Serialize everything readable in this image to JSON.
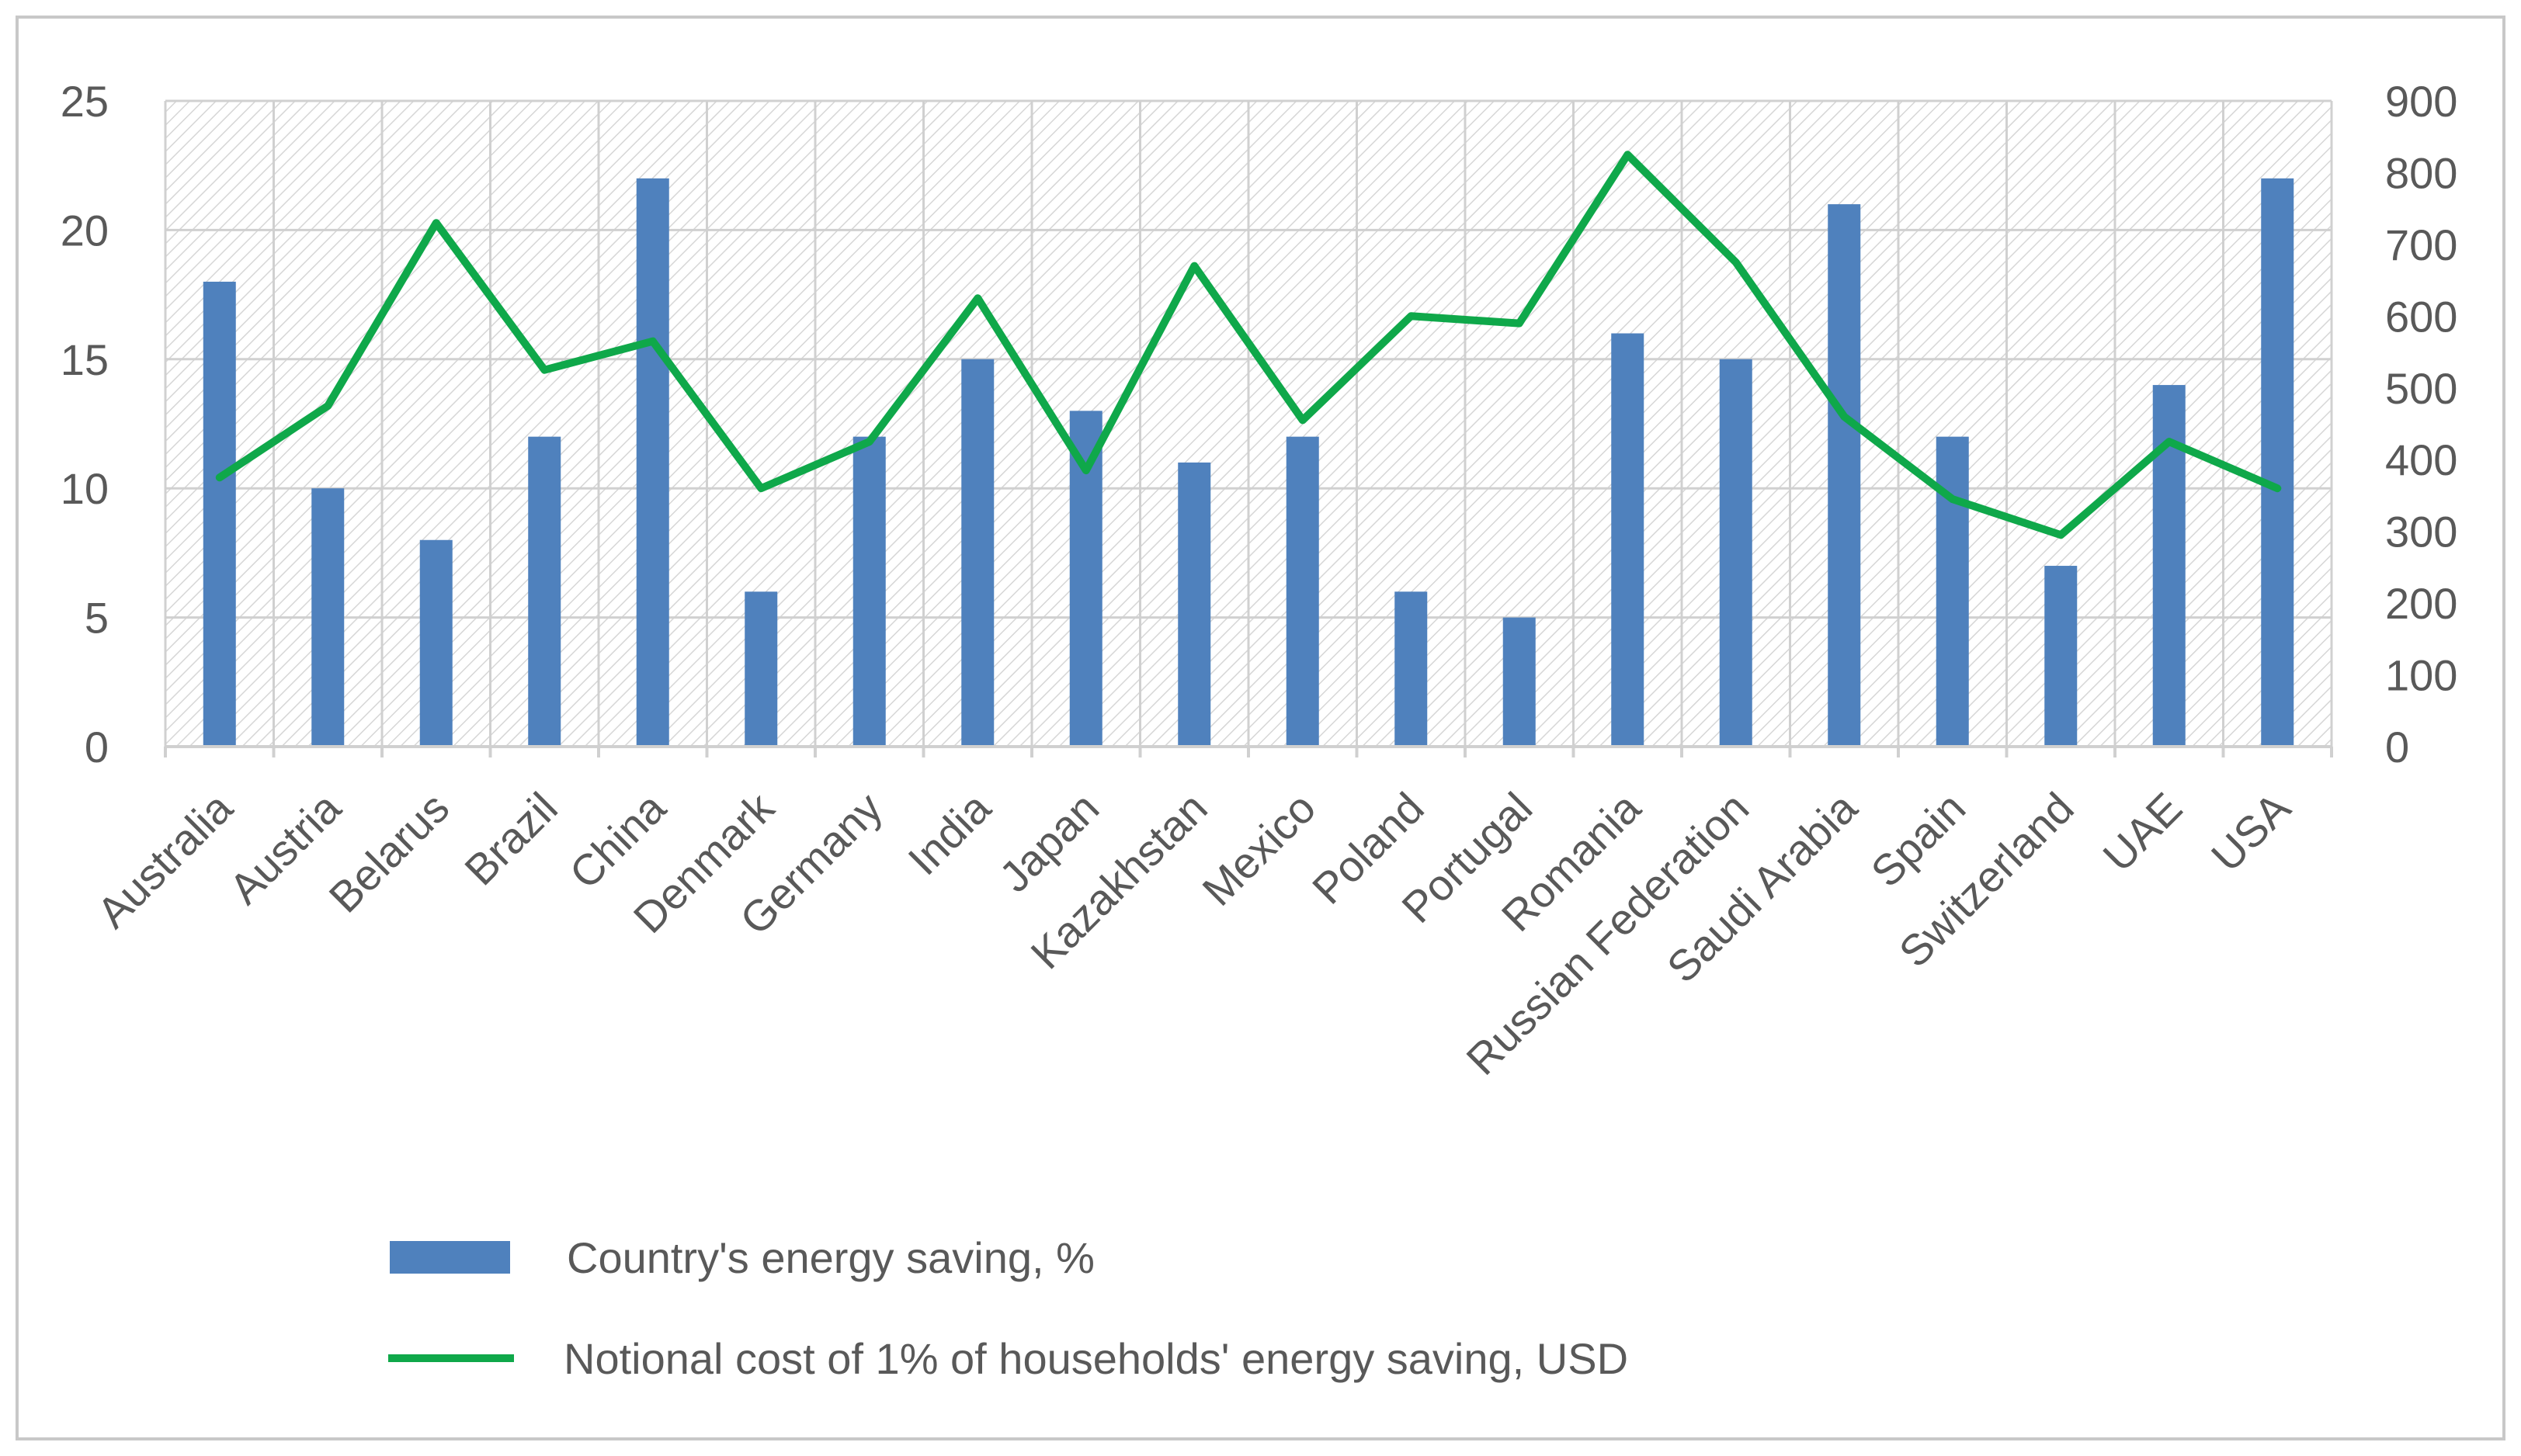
{
  "colors": {
    "bar": "#4F81BD",
    "line": "#0FA84A",
    "grid": "#D0D0D0",
    "frame": "#C8C8C8",
    "text": "#595959",
    "hatch": "#D6D6D6"
  },
  "chart_data": {
    "type": "bar",
    "title": "",
    "xlabel": "",
    "ylabel": "",
    "y2label": "",
    "ylim": [
      0,
      25
    ],
    "y2lim": [
      0,
      900
    ],
    "yticks": [
      "0",
      "5",
      "10",
      "15",
      "20",
      "25"
    ],
    "y2ticks": [
      "0",
      "100",
      "200",
      "300",
      "400",
      "500",
      "600",
      "700",
      "800",
      "900"
    ],
    "categories": [
      "Australia",
      "Austria",
      "Belarus",
      "Brazil",
      "China",
      "Denmark",
      "Germany",
      "India",
      "Japan",
      "Kazakhstan",
      "Mexico",
      "Poland",
      "Portugal",
      "Romania",
      "Russian Federation",
      "Saudi Arabia",
      "Spain",
      "Switzerland",
      "UAE",
      "USA"
    ],
    "series": [
      {
        "name": "Country's energy saving, %",
        "type": "bar",
        "axis": "left",
        "values": [
          18,
          10,
          8,
          12,
          22,
          6,
          12,
          15,
          13,
          11,
          12,
          6,
          5,
          16,
          15,
          21,
          12,
          7,
          14,
          22
        ]
      },
      {
        "name": "Notional cost of 1% of households' energy saving, USD",
        "type": "line",
        "axis": "right",
        "values": [
          375,
          475,
          730,
          525,
          565,
          360,
          425,
          625,
          385,
          670,
          455,
          600,
          590,
          825,
          675,
          460,
          345,
          295,
          425,
          360
        ]
      }
    ],
    "grid": true,
    "legend_position": "bottom"
  }
}
